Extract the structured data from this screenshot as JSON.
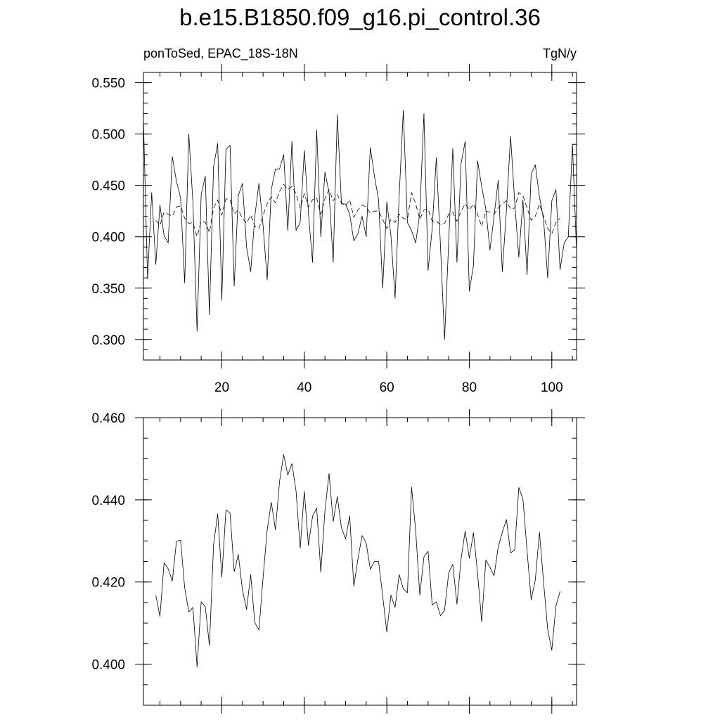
{
  "title": "b.e15.B1850.f09_g16.pi_control.36",
  "subtitle_left": "ponToSed, EPAC_18S-18N",
  "subtitle_right": "TgN/y",
  "colors": {
    "line": "#000000",
    "axis": "#000000",
    "background": "#ffffff"
  },
  "chart_data": [
    {
      "type": "line",
      "title": "",
      "xlabel": "",
      "ylabel": "",
      "xlim": [
        1,
        106
      ],
      "ylim": [
        0.28,
        0.56
      ],
      "grid": false,
      "x_ticks": [
        20,
        40,
        60,
        80,
        100
      ],
      "y_ticks": [
        0.3,
        0.35,
        0.4,
        0.45,
        0.5,
        0.55
      ],
      "x_tick_labels": [
        "20",
        "40",
        "60",
        "80",
        "100"
      ],
      "y_tick_labels": [
        "0.300",
        "0.350",
        "0.400",
        "0.450",
        "0.500",
        "0.550"
      ],
      "series": [
        {
          "style": "solid",
          "x_start": 1,
          "values": [
            0.514,
            0.359,
            0.443,
            0.373,
            0.431,
            0.401,
            0.394,
            0.478,
            0.454,
            0.438,
            0.355,
            0.5,
            0.433,
            0.308,
            0.441,
            0.459,
            0.324,
            0.468,
            0.491,
            0.338,
            0.485,
            0.489,
            0.352,
            0.44,
            0.452,
            0.39,
            0.366,
            0.42,
            0.452,
            0.411,
            0.358,
            0.446,
            0.466,
            0.466,
            0.48,
            0.406,
            0.493,
            0.406,
            0.414,
            0.484,
            0.423,
            0.375,
            0.504,
            0.4,
            0.463,
            0.443,
            0.375,
            0.519,
            0.432,
            0.432,
            0.422,
            0.396,
            0.403,
            0.42,
            0.4,
            0.487,
            0.459,
            0.436,
            0.35,
            0.434,
            0.401,
            0.34,
            0.44,
            0.523,
            0.414,
            0.406,
            0.394,
            0.423,
            0.52,
            0.367,
            0.408,
            0.477,
            0.392,
            0.3,
            0.395,
            0.486,
            0.375,
            0.471,
            0.493,
            0.347,
            0.372,
            0.474,
            0.449,
            0.427,
            0.387,
            0.42,
            0.455,
            0.366,
            0.426,
            0.498,
            0.434,
            0.38,
            0.436,
            0.363,
            0.461,
            0.47,
            0.439,
            0.417,
            0.36,
            0.435,
            0.446,
            0.368,
            0.394,
            0.4,
            0.49,
            0.385
          ]
        },
        {
          "style": "dashed",
          "x_start": 4,
          "values": [
            0.416,
            0.411,
            0.424,
            0.422,
            0.42,
            0.429,
            0.43,
            0.418,
            0.413,
            0.414,
            0.4,
            0.415,
            0.414,
            0.404,
            0.428,
            0.436,
            0.421,
            0.437,
            0.436,
            0.422,
            0.426,
            0.418,
            0.413,
            0.421,
            0.41,
            0.408,
            0.421,
            0.432,
            0.439,
            0.433,
            0.444,
            0.451,
            0.446,
            0.449,
            0.442,
            0.428,
            0.442,
            0.429,
            0.436,
            0.438,
            0.422,
            0.437,
            0.446,
            0.435,
            0.441,
            0.433,
            0.43,
            0.436,
            0.419,
            0.426,
            0.431,
            0.429,
            0.423,
            0.425,
            0.425,
            0.417,
            0.408,
            0.417,
            0.414,
            0.422,
            0.418,
            0.417,
            0.443,
            0.432,
            0.417,
            0.426,
            0.427,
            0.415,
            0.415,
            0.412,
            0.413,
            0.422,
            0.424,
            0.415,
            0.425,
            0.432,
            0.426,
            0.432,
            0.422,
            0.41,
            0.425,
            0.424,
            0.422,
            0.428,
            0.432,
            0.435,
            0.427,
            0.428,
            0.443,
            0.44,
            0.428,
            0.416,
            0.42,
            0.432,
            0.42,
            0.408,
            0.403,
            0.414,
            0.418
          ]
        }
      ]
    },
    {
      "type": "line",
      "title": "",
      "xlabel": "",
      "ylabel": "",
      "xlim": [
        1,
        106
      ],
      "ylim": [
        0.39,
        0.46
      ],
      "grid": false,
      "x_ticks": [
        20,
        40,
        60,
        80,
        100
      ],
      "y_ticks": [
        0.4,
        0.42,
        0.44,
        0.46
      ],
      "y_tick_labels": [
        "0.400",
        "0.420",
        "0.440",
        "0.460"
      ],
      "series": [
        {
          "style": "solid",
          "x_start": 4,
          "values": [
            0.4168,
            0.4116,
            0.4247,
            0.4232,
            0.4202,
            0.4299,
            0.4302,
            0.4186,
            0.4127,
            0.4138,
            0.3993,
            0.4152,
            0.414,
            0.4045,
            0.429,
            0.4366,
            0.4212,
            0.4375,
            0.4368,
            0.4225,
            0.4267,
            0.4181,
            0.4133,
            0.4218,
            0.4101,
            0.4083,
            0.421,
            0.4327,
            0.4394,
            0.4327,
            0.4445,
            0.451,
            0.446,
            0.4488,
            0.4421,
            0.4282,
            0.4421,
            0.4289,
            0.436,
            0.438,
            0.4224,
            0.4373,
            0.4464,
            0.4347,
            0.4408,
            0.4332,
            0.4305,
            0.4361,
            0.419,
            0.4256,
            0.4313,
            0.4295,
            0.4231,
            0.425,
            0.425,
            0.4166,
            0.4078,
            0.4168,
            0.4138,
            0.4218,
            0.4183,
            0.4174,
            0.4431,
            0.4325,
            0.4168,
            0.4261,
            0.4275,
            0.4144,
            0.4152,
            0.4118,
            0.4131,
            0.4222,
            0.4243,
            0.4146,
            0.4256,
            0.4324,
            0.4258,
            0.432,
            0.4221,
            0.4103,
            0.4253,
            0.4236,
            0.4215,
            0.4285,
            0.4321,
            0.4352,
            0.4271,
            0.4278,
            0.443,
            0.4402,
            0.4276,
            0.4157,
            0.4205,
            0.4321,
            0.42,
            0.4085,
            0.4034,
            0.4142,
            0.4177
          ]
        }
      ]
    }
  ]
}
